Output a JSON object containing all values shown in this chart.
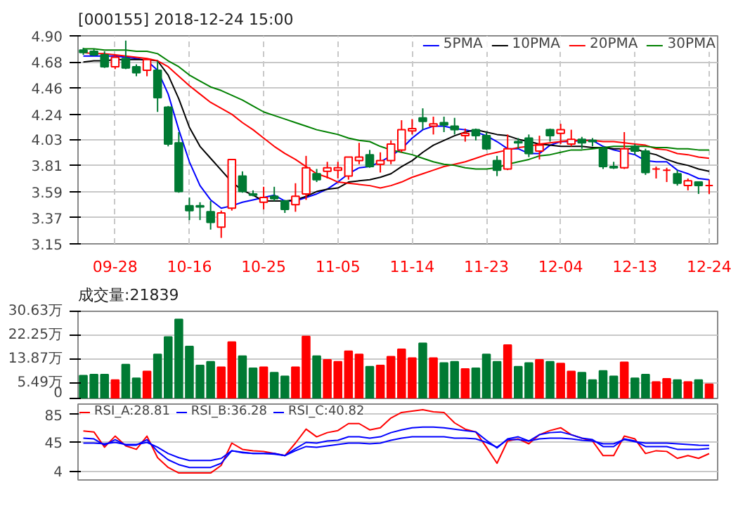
{
  "chart_data": [
    {
      "type": "candlestick",
      "title": "[000155] 2018-12-24 15:00",
      "categories": [
        null,
        null,
        null,
        "09-28",
        null,
        null,
        null,
        null,
        null,
        null,
        "10-16",
        null,
        null,
        null,
        null,
        null,
        null,
        "10-25",
        null,
        null,
        null,
        null,
        null,
        null,
        "11-05",
        null,
        null,
        null,
        null,
        null,
        null,
        "11-14",
        null,
        null,
        null,
        null,
        null,
        null,
        "11-23",
        null,
        null,
        null,
        null,
        null,
        null,
        "12-04",
        null,
        null,
        null,
        null,
        null,
        null,
        "12-13",
        null,
        null,
        null,
        null,
        null,
        null,
        "12-24"
      ],
      "ohlc": [
        [
          4.78,
          4.8,
          4.74,
          4.76
        ],
        [
          4.77,
          4.79,
          4.73,
          4.74
        ],
        [
          4.74,
          4.77,
          4.63,
          4.64
        ],
        [
          4.64,
          4.74,
          4.62,
          4.72
        ],
        [
          4.71,
          4.86,
          4.62,
          4.63
        ],
        [
          4.64,
          4.66,
          4.56,
          4.59
        ],
        [
          4.61,
          4.71,
          4.56,
          4.7
        ],
        [
          4.61,
          4.69,
          4.26,
          4.38
        ],
        [
          4.3,
          4.31,
          3.97,
          3.99
        ],
        [
          4.0,
          4.09,
          3.58,
          3.59
        ],
        [
          3.47,
          3.54,
          3.35,
          3.43
        ],
        [
          3.47,
          3.5,
          3.35,
          3.46
        ],
        [
          3.42,
          3.51,
          3.27,
          3.33
        ],
        [
          3.29,
          3.43,
          3.2,
          3.41
        ],
        [
          3.45,
          3.86,
          3.43,
          3.86
        ],
        [
          3.72,
          3.76,
          3.58,
          3.59
        ],
        [
          3.57,
          3.6,
          3.55,
          3.56
        ],
        [
          3.5,
          3.63,
          3.44,
          3.54
        ],
        [
          3.55,
          3.63,
          3.51,
          3.53
        ],
        [
          3.51,
          3.52,
          3.41,
          3.44
        ],
        [
          3.48,
          3.66,
          3.42,
          3.55
        ],
        [
          3.57,
          3.89,
          3.52,
          3.79
        ],
        [
          3.74,
          3.78,
          3.67,
          3.69
        ],
        [
          3.76,
          3.84,
          3.7,
          3.79
        ],
        [
          3.77,
          3.84,
          3.7,
          3.79
        ],
        [
          3.72,
          3.88,
          3.69,
          3.88
        ],
        [
          3.85,
          4.0,
          3.82,
          3.88
        ],
        [
          3.9,
          3.94,
          3.79,
          3.8
        ],
        [
          3.82,
          3.92,
          3.75,
          3.85
        ],
        [
          3.85,
          4.02,
          3.82,
          3.99
        ],
        [
          3.94,
          4.19,
          3.92,
          4.11
        ],
        [
          4.1,
          4.2,
          4.07,
          4.12
        ],
        [
          4.21,
          4.29,
          4.11,
          4.18
        ],
        [
          4.14,
          4.22,
          4.07,
          4.16
        ],
        [
          4.17,
          4.22,
          4.09,
          4.15
        ],
        [
          4.14,
          4.21,
          4.07,
          4.11
        ],
        [
          4.06,
          4.12,
          4.01,
          4.08
        ],
        [
          4.11,
          4.12,
          4.02,
          4.06
        ],
        [
          4.06,
          4.09,
          3.94,
          3.95
        ],
        [
          3.85,
          3.89,
          3.72,
          3.77
        ],
        [
          3.78,
          4.07,
          3.77,
          3.95
        ],
        [
          4.01,
          4.04,
          3.95,
          4.0
        ],
        [
          4.04,
          4.07,
          3.88,
          3.91
        ],
        [
          3.93,
          4.06,
          3.86,
          3.98
        ],
        [
          4.11,
          4.12,
          4.01,
          4.06
        ],
        [
          4.08,
          4.16,
          3.99,
          4.11
        ],
        [
          3.99,
          4.11,
          3.97,
          4.03
        ],
        [
          4.03,
          4.05,
          3.95,
          4.0
        ],
        [
          4.02,
          4.04,
          3.97,
          4.01
        ],
        [
          3.95,
          3.97,
          3.78,
          3.8
        ],
        [
          3.8,
          3.84,
          3.78,
          3.79
        ],
        [
          3.79,
          4.09,
          3.78,
          3.95
        ],
        [
          3.97,
          3.99,
          3.9,
          3.93
        ],
        [
          3.93,
          3.95,
          3.73,
          3.75
        ],
        [
          3.78,
          3.8,
          3.7,
          3.78
        ],
        [
          3.77,
          3.79,
          3.67,
          3.77
        ],
        [
          3.74,
          3.77,
          3.64,
          3.66
        ],
        [
          3.64,
          3.7,
          3.6,
          3.68
        ],
        [
          3.67,
          3.67,
          3.57,
          3.64
        ],
        [
          3.64,
          3.69,
          3.57,
          3.64
        ]
      ],
      "colors": [
        "#007a33",
        "#007a33",
        "#007a33",
        "#ff0000",
        "#007a33",
        "#007a33",
        "#ff0000",
        "#007a33",
        "#007a33",
        "#007a33",
        "#007a33",
        "#007a33",
        "#007a33",
        "#ff0000",
        "#ff0000",
        "#007a33",
        "#007a33",
        "#ff0000",
        "#007a33",
        "#007a33",
        "#ff0000",
        "#ff0000",
        "#007a33",
        "#ff0000",
        "#ff0000",
        "#ff0000",
        "#ff0000",
        "#007a33",
        "#ff0000",
        "#ff0000",
        "#ff0000",
        "#ff0000",
        "#007a33",
        "#ff0000",
        "#007a33",
        "#007a33",
        "#ff0000",
        "#007a33",
        "#007a33",
        "#007a33",
        "#ff0000",
        "#007a33",
        "#007a33",
        "#ff0000",
        "#007a33",
        "#ff0000",
        "#ff0000",
        "#007a33",
        "#007a33",
        "#007a33",
        "#007a33",
        "#ff0000",
        "#007a33",
        "#007a33",
        "#ff0000",
        "#ff0000",
        "#007a33",
        "#ff0000",
        "#007a33",
        "#ff0000"
      ],
      "series": [
        {
          "name": "5PMA",
          "type": "line",
          "color": "#0000ff",
          "values": [
            4.73,
            4.73,
            4.73,
            4.73,
            4.72,
            4.71,
            4.69,
            4.61,
            4.41,
            4.11,
            3.84,
            3.64,
            3.52,
            3.45,
            3.47,
            3.5,
            3.52,
            3.54,
            3.56,
            3.51,
            3.51,
            3.54,
            3.57,
            3.61,
            3.67,
            3.74,
            3.79,
            3.8,
            3.84,
            3.89,
            3.95,
            4.04,
            4.11,
            4.14,
            4.14,
            4.12,
            4.11,
            4.09,
            4.06,
            4.01,
            3.95,
            3.95,
            3.91,
            3.91,
            3.98,
            4.01,
            4.01,
            4.02,
            4.02,
            3.97,
            3.94,
            3.92,
            3.9,
            3.85,
            3.84,
            3.84,
            3.77,
            3.74,
            3.7,
            3.69
          ]
        },
        {
          "name": "10PMA",
          "type": "line",
          "color": "#000000",
          "values": [
            4.68,
            4.69,
            4.69,
            4.7,
            4.7,
            4.7,
            4.7,
            4.69,
            4.57,
            4.37,
            4.13,
            3.97,
            3.87,
            3.77,
            3.67,
            3.6,
            3.56,
            3.51,
            3.51,
            3.51,
            3.52,
            3.55,
            3.59,
            3.61,
            3.62,
            3.67,
            3.68,
            3.69,
            3.71,
            3.74,
            3.8,
            3.85,
            3.92,
            3.98,
            4.02,
            4.06,
            4.09,
            4.11,
            4.09,
            4.07,
            4.06,
            4.03,
            4.01,
            3.99,
            3.98,
            3.97,
            3.97,
            3.97,
            3.96,
            3.96,
            3.95,
            3.95,
            3.95,
            3.92,
            3.9,
            3.86,
            3.83,
            3.81,
            3.78,
            3.76
          ]
        },
        {
          "name": "20PMA",
          "type": "line",
          "color": "#ff0000",
          "values": [
            4.76,
            4.75,
            4.75,
            4.74,
            4.73,
            4.72,
            4.71,
            4.69,
            4.64,
            4.56,
            4.48,
            4.41,
            4.34,
            4.29,
            4.24,
            4.17,
            4.11,
            4.04,
            3.97,
            3.91,
            3.86,
            3.8,
            3.74,
            3.71,
            3.67,
            3.66,
            3.65,
            3.64,
            3.62,
            3.64,
            3.67,
            3.71,
            3.74,
            3.77,
            3.8,
            3.82,
            3.84,
            3.87,
            3.9,
            3.92,
            3.94,
            3.96,
            3.97,
            3.99,
            4.0,
            4.01,
            4.02,
            4.02,
            4.02,
            4.01,
            4.01,
            4.0,
            3.99,
            3.98,
            3.95,
            3.94,
            3.91,
            3.9,
            3.88,
            3.87
          ]
        },
        {
          "name": "30PMA",
          "type": "line",
          "color": "#008000",
          "values": [
            4.79,
            4.79,
            4.78,
            4.78,
            4.78,
            4.77,
            4.77,
            4.75,
            4.69,
            4.64,
            4.57,
            4.52,
            4.47,
            4.44,
            4.4,
            4.36,
            4.31,
            4.26,
            4.23,
            4.2,
            4.17,
            4.14,
            4.11,
            4.09,
            4.07,
            4.04,
            4.02,
            4.01,
            3.97,
            3.94,
            3.92,
            3.9,
            3.87,
            3.84,
            3.82,
            3.81,
            3.79,
            3.78,
            3.78,
            3.79,
            3.82,
            3.84,
            3.86,
            3.89,
            3.9,
            3.92,
            3.94,
            3.94,
            3.95,
            3.96,
            3.97,
            3.97,
            3.97,
            3.97,
            3.96,
            3.96,
            3.95,
            3.95,
            3.94,
            3.94
          ]
        }
      ],
      "ylim": [
        3.15,
        4.9
      ],
      "yticks": [
        3.15,
        3.37,
        3.59,
        3.81,
        4.03,
        4.24,
        4.46,
        4.68,
        {
          "value": 4.9,
          "label": "4.90"
        }
      ],
      "grid": true,
      "legend": "top right"
    },
    {
      "type": "bar",
      "title": "成交量:21839",
      "categories": [
        null,
        null,
        null,
        null,
        null,
        null,
        null,
        null,
        null,
        null,
        null,
        null,
        null,
        null,
        null,
        null,
        null,
        null,
        null,
        null,
        null,
        null,
        null,
        null,
        null,
        null,
        null,
        null,
        null,
        null,
        null,
        null,
        null,
        null,
        null,
        null,
        null,
        null,
        null,
        null,
        null,
        null,
        null,
        null,
        null,
        null,
        null,
        null,
        null,
        null,
        null,
        null,
        null,
        null,
        null,
        null,
        null,
        null,
        null,
        null
      ],
      "values": [
        8.0,
        8.4,
        8.4,
        6.5,
        11.9,
        7.1,
        9.5,
        15.5,
        21.6,
        27.8,
        18.3,
        11.6,
        12.9,
        11.0,
        19.8,
        14.9,
        10.6,
        11.0,
        9.1,
        7.8,
        11.0,
        21.8,
        14.9,
        13.6,
        12.9,
        16.6,
        15.5,
        11.2,
        11.6,
        14.7,
        17.3,
        14.2,
        19.4,
        14.2,
        12.5,
        12.9,
        10.4,
        10.6,
        15.5,
        12.9,
        18.8,
        11.2,
        12.5,
        13.6,
        12.9,
        12.3,
        9.5,
        9.1,
        6.5,
        9.7,
        7.8,
        12.7,
        7.1,
        8.4,
        5.8,
        6.9,
        6.5,
        5.8,
        6.5,
        5.0
      ],
      "colors": [
        "#007a33",
        "#007a33",
        "#007a33",
        "#ff0000",
        "#007a33",
        "#007a33",
        "#ff0000",
        "#007a33",
        "#007a33",
        "#007a33",
        "#007a33",
        "#007a33",
        "#007a33",
        "#ff0000",
        "#ff0000",
        "#007a33",
        "#007a33",
        "#ff0000",
        "#007a33",
        "#007a33",
        "#ff0000",
        "#ff0000",
        "#007a33",
        "#ff0000",
        "#ff0000",
        "#ff0000",
        "#ff0000",
        "#007a33",
        "#ff0000",
        "#ff0000",
        "#ff0000",
        "#ff0000",
        "#007a33",
        "#ff0000",
        "#007a33",
        "#007a33",
        "#ff0000",
        "#007a33",
        "#007a33",
        "#007a33",
        "#ff0000",
        "#007a33",
        "#007a33",
        "#ff0000",
        "#007a33",
        "#ff0000",
        "#ff0000",
        "#007a33",
        "#007a33",
        "#007a33",
        "#007a33",
        "#ff0000",
        "#007a33",
        "#007a33",
        "#ff0000",
        "#ff0000",
        "#007a33",
        "#ff0000",
        "#007a33",
        "#ff0000"
      ],
      "ylim": [
        0,
        30.63
      ],
      "yticks": [
        0,
        {
          "value": 5.49,
          "label": "5.49万"
        },
        {
          "value": 13.87,
          "label": "13.87万"
        },
        {
          "value": 22.25,
          "label": "22.25万"
        },
        {
          "value": 30.63,
          "label": "30.63万"
        }
      ],
      "grid": "y"
    },
    {
      "type": "line",
      "categories": [
        null,
        null,
        null,
        null,
        null,
        null,
        null,
        null,
        null,
        null,
        null,
        null,
        null,
        null,
        null,
        null,
        null,
        null,
        null,
        null,
        null,
        null,
        null,
        null,
        null,
        null,
        null,
        null,
        null,
        null,
        null,
        null,
        null,
        null,
        null,
        null,
        null,
        null,
        null,
        null,
        null,
        null,
        null,
        null,
        null,
        null,
        null,
        null,
        null,
        null,
        null,
        null,
        null,
        null,
        null,
        null,
        null,
        null,
        null,
        null
      ],
      "series": [
        {
          "name": "RSI_A:28.81",
          "color": "#ff0000",
          "values": [
            61.5,
            60,
            38,
            54,
            40,
            35,
            54,
            23,
            9,
            1,
            1,
            1,
            1,
            12,
            44,
            35,
            33,
            32,
            29,
            26,
            44,
            64,
            53,
            59,
            62,
            72,
            72,
            63,
            66,
            80,
            88,
            90,
            92,
            89,
            88,
            73,
            64,
            60,
            38,
            15,
            47,
            50,
            43,
            56,
            62,
            66,
            56,
            51,
            47,
            26,
            26,
            54,
            50,
            29,
            33,
            32,
            22,
            26,
            22,
            28.81
          ]
        },
        {
          "name": "RSI_B:36.28",
          "color": "#0000ff",
          "values": [
            51,
            50,
            41,
            49,
            41,
            41,
            49,
            32,
            20,
            13,
            9,
            9,
            9,
            15,
            33,
            30,
            29,
            29,
            28,
            26,
            36,
            45,
            44,
            47,
            48,
            53,
            53,
            51,
            53,
            59,
            63,
            66,
            67,
            67,
            66,
            64,
            62,
            60,
            48,
            37,
            50,
            53,
            47,
            56,
            59,
            60,
            56,
            51,
            49,
            39,
            39,
            50,
            47,
            39,
            39,
            39,
            35,
            35,
            35,
            36.28
          ]
        },
        {
          "name": "RSI_C:40.82",
          "color": "#0000ff",
          "values": [
            44,
            44,
            43,
            45,
            42,
            42,
            45,
            38,
            29,
            23,
            19,
            19,
            19,
            22,
            33,
            31,
            29,
            29,
            29,
            26,
            33,
            39,
            38,
            40,
            42,
            44,
            44,
            43,
            44,
            48,
            51,
            53,
            53,
            53,
            53,
            51,
            51,
            50,
            45,
            38,
            49,
            49,
            47,
            50,
            51,
            51,
            50,
            48,
            47,
            43,
            43,
            49,
            46,
            44,
            44,
            44,
            43,
            42,
            41,
            40.82
          ]
        }
      ],
      "ylim": [
        -9,
        100
      ],
      "yticks": [
        4,
        45,
        85
      ],
      "grid": "y",
      "legend": "top left"
    }
  ]
}
